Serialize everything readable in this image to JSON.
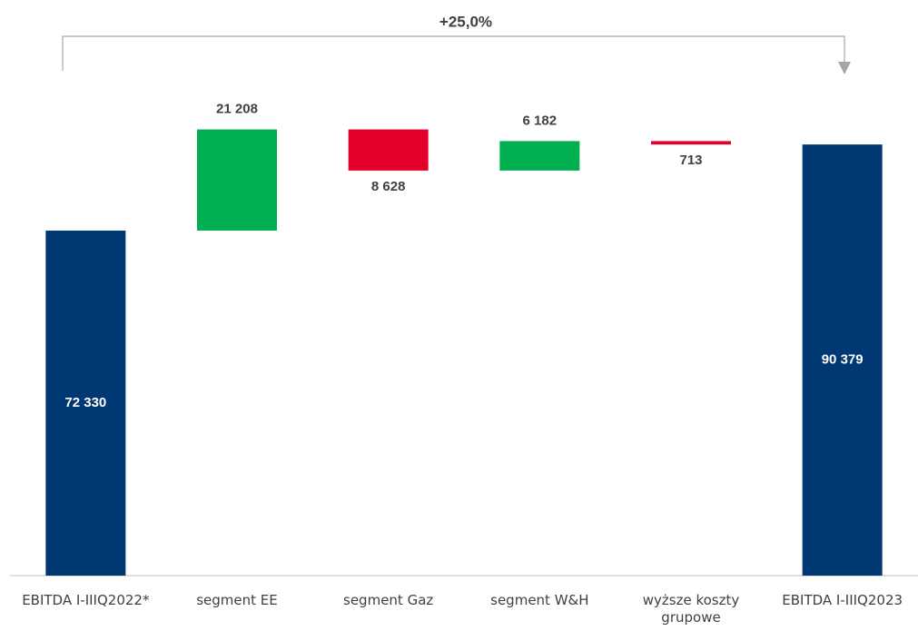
{
  "chart_data": {
    "type": "waterfall",
    "annotation": "+25,0%",
    "categories": [
      "EBITDA I-IIIQ2022*",
      "segment EE",
      "segment Gaz",
      "segment W&H",
      "wyższe koszty grupowe",
      "EBITDA I-IIIQ2023"
    ],
    "values": [
      72330,
      21208,
      -8628,
      6182,
      -713,
      90379
    ],
    "value_labels": [
      "72 330",
      "21 208",
      "8 628",
      "6 182",
      "713",
      "90 379"
    ],
    "measures": [
      "total",
      "delta",
      "delta",
      "delta",
      "delta",
      "total"
    ],
    "colors": {
      "total": "#003873",
      "increase": "#00b050",
      "decrease": "#e4002b"
    },
    "ylim": [
      0,
      100000
    ]
  }
}
